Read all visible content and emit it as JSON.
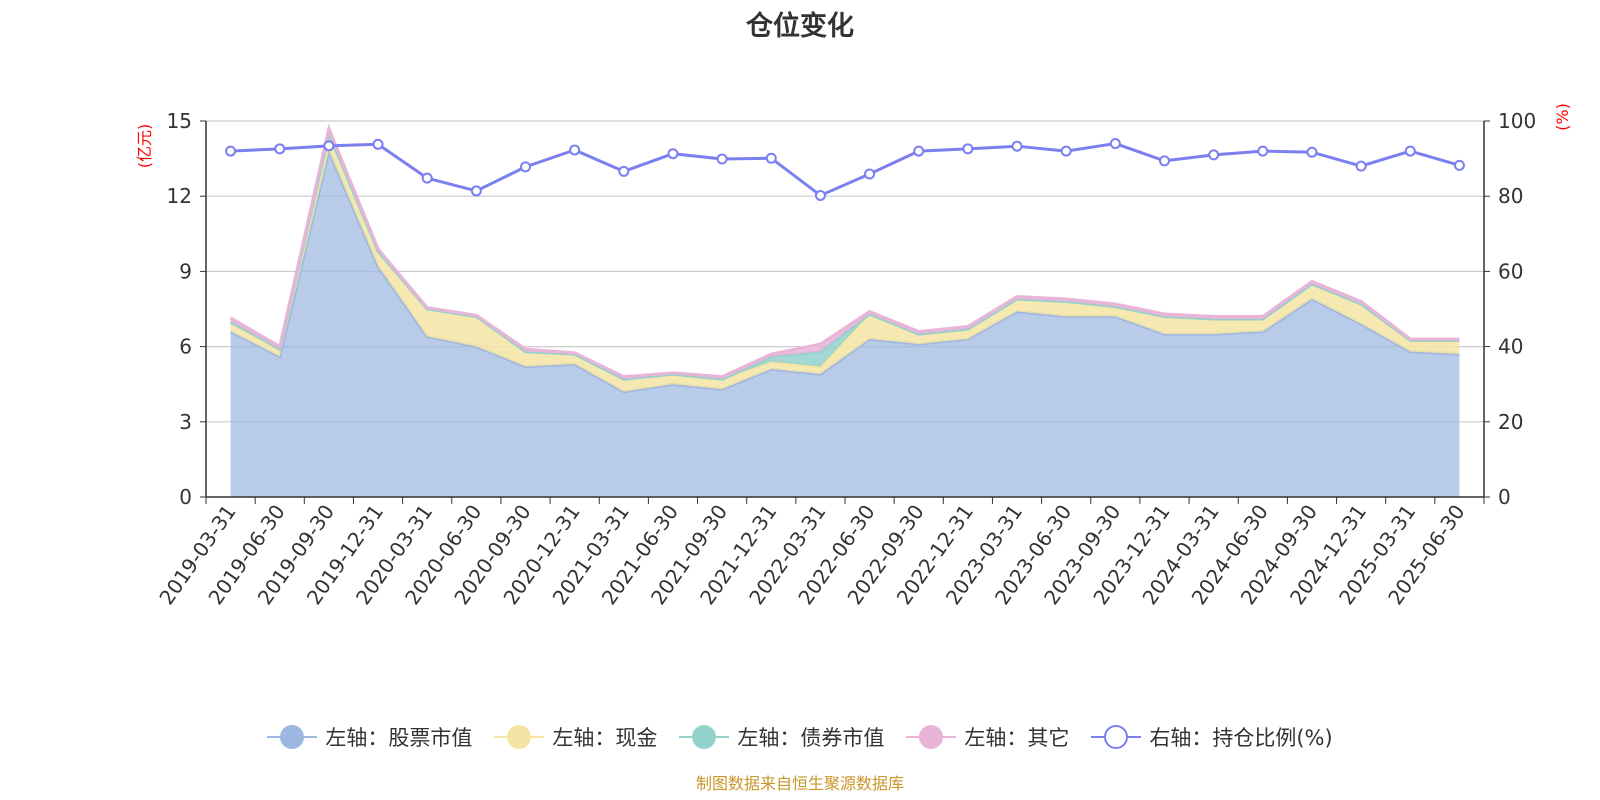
{
  "source_note": "制图数据来自恒生聚源数据库",
  "chart_data": {
    "type": "area",
    "title": "仓位变化",
    "ylabel_left": "(亿元)",
    "ylabel_right": "(%)",
    "ylim_left": [
      0,
      15
    ],
    "ylim_right": [
      0,
      100
    ],
    "yticks_left": [
      "0",
      "3",
      "6",
      "9",
      "12",
      "15"
    ],
    "yticks_right": [
      "0",
      "20",
      "40",
      "60",
      "80",
      "100"
    ],
    "grid": true,
    "legend_position": "bottom",
    "categories": [
      "2019-03-31",
      "2019-06-30",
      "2019-09-30",
      "2019-12-31",
      "2020-03-31",
      "2020-06-30",
      "2020-09-30",
      "2020-12-31",
      "2021-03-31",
      "2021-06-30",
      "2021-09-30",
      "2021-12-31",
      "2022-03-31",
      "2022-06-30",
      "2022-09-30",
      "2022-12-31",
      "2023-03-31",
      "2023-06-30",
      "2023-09-30",
      "2023-12-31",
      "2024-03-31",
      "2024-06-30",
      "2024-09-30",
      "2024-12-31",
      "2025-03-31",
      "2025-06-30"
    ],
    "series": [
      {
        "name": "左轴：股票市值",
        "axis": "left",
        "color": "#9db7e0",
        "values": [
          6.6,
          5.6,
          13.8,
          9.2,
          6.4,
          6.0,
          5.2,
          5.3,
          4.2,
          4.5,
          4.3,
          5.1,
          4.9,
          6.3,
          6.1,
          6.3,
          7.4,
          7.2,
          7.2,
          6.5,
          6.5,
          6.6,
          7.9,
          6.9,
          5.8,
          5.7
        ]
      },
      {
        "name": "左轴：现金",
        "axis": "left",
        "color": "#f5e4a3",
        "values": [
          0.3,
          0.3,
          0.7,
          0.6,
          1.1,
          1.2,
          0.6,
          0.4,
          0.5,
          0.4,
          0.4,
          0.3,
          0.3,
          1.0,
          0.4,
          0.4,
          0.5,
          0.6,
          0.4,
          0.7,
          0.6,
          0.5,
          0.6,
          0.8,
          0.4,
          0.5
        ]
      },
      {
        "name": "左轴：债券市值",
        "axis": "left",
        "color": "#93d2cc",
        "values": [
          0.1,
          0,
          0,
          0,
          0,
          0,
          0,
          0,
          0,
          0,
          0,
          0.2,
          0.6,
          0,
          0,
          0,
          0,
          0,
          0,
          0,
          0,
          0,
          0,
          0,
          0.05,
          0.05
        ]
      },
      {
        "name": "左轴：其它",
        "axis": "left",
        "color": "#e8b4d8",
        "values": [
          0.15,
          0.1,
          0.2,
          0.1,
          0.05,
          0.05,
          0.1,
          0.05,
          0.1,
          0.05,
          0.1,
          0.1,
          0.3,
          0.1,
          0.1,
          0.1,
          0.1,
          0.1,
          0.1,
          0.1,
          0.1,
          0.1,
          0.1,
          0.1,
          0.05,
          0.05
        ]
      },
      {
        "name": "右轴：持仓比例(%)",
        "axis": "right",
        "color": "#7b7ff0",
        "values": [
          92.0,
          92.6,
          93.4,
          93.8,
          84.8,
          81.4,
          87.8,
          92.3,
          86.6,
          91.3,
          89.9,
          90.1,
          80.2,
          85.9,
          92.0,
          92.6,
          93.3,
          92.0,
          94.0,
          89.4,
          91.0,
          92.0,
          91.7,
          88.0,
          92.0,
          88.2
        ]
      }
    ]
  }
}
